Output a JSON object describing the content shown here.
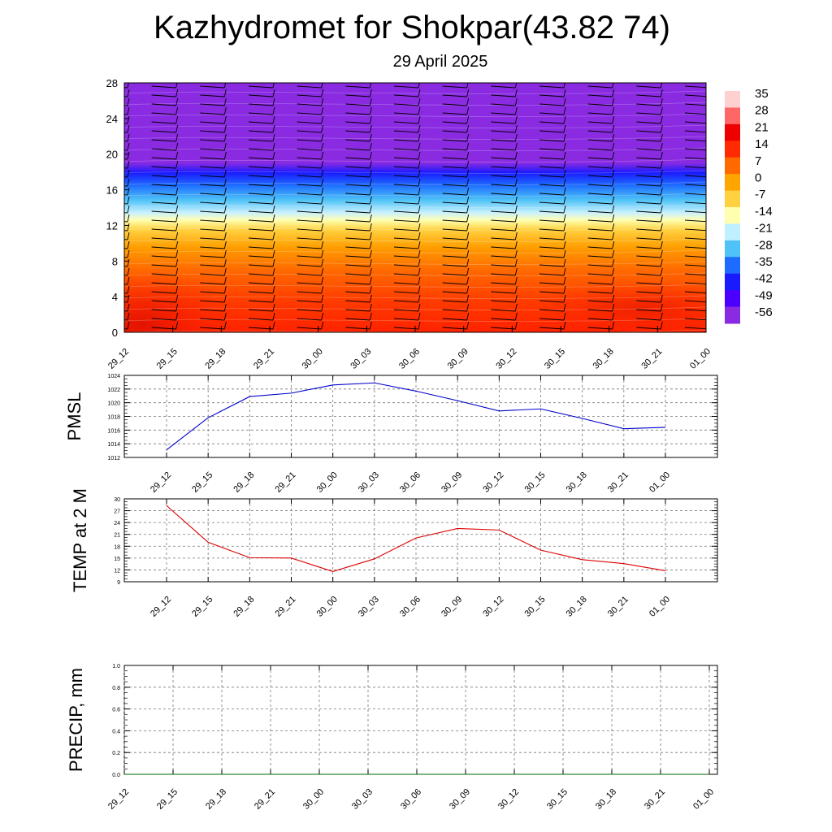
{
  "title": "Kazhydromet for Shokpar(43.82 74)",
  "subtitle": "29 April 2025",
  "x_times": [
    "29_12",
    "29_15",
    "29_18",
    "29_21",
    "30_00",
    "30_03",
    "30_06",
    "30_09",
    "30_12",
    "30_15",
    "30_18",
    "30_21",
    "01_00"
  ],
  "chart_data": [
    {
      "type": "heatmap",
      "name": "cross-section",
      "title": "",
      "xlabel": "",
      "ylabel": "",
      "categories": [
        "29_12",
        "29_15",
        "29_18",
        "29_21",
        "30_00",
        "30_03",
        "30_06",
        "30_09",
        "30_12",
        "30_15",
        "30_18",
        "30_21",
        "01_00"
      ],
      "ylim": [
        0,
        28
      ],
      "y_ticks": [
        0,
        4,
        8,
        12,
        16,
        20,
        24,
        28
      ],
      "colorbar_labels": [
        "35",
        "28",
        "21",
        "14",
        "7",
        "0",
        "-7",
        "-14",
        "-21",
        "-28",
        "-35",
        "-42",
        "-49",
        "-56"
      ],
      "colorbar_range": [
        -63,
        42
      ],
      "colors": {
        "warm": "#ff2a00",
        "cold": "#8a2be2",
        "freeze": "#ffffb0"
      }
    },
    {
      "type": "line",
      "title": "",
      "ylabel": "PMSL",
      "categories": [
        "29_12",
        "29_15",
        "29_18",
        "29_21",
        "30_00",
        "30_03",
        "30_06",
        "30_09",
        "30_12",
        "30_15",
        "30_18",
        "30_21",
        "01_00"
      ],
      "series": [
        {
          "values": [
            1013.1,
            1017.8,
            1020.9,
            1021.4,
            1022.6,
            1022.9,
            1021.7,
            1020.3,
            1018.8,
            1019.1,
            1017.7,
            1016.2,
            1016.4
          ],
          "color": "#0000cc"
        }
      ],
      "ylim": [
        1012,
        1024
      ],
      "y_ticks": [
        "1012",
        "1014",
        "1016",
        "1018",
        "1020",
        "1022",
        "1024"
      ]
    },
    {
      "type": "line",
      "title": "",
      "ylabel": "TEMP at 2 M",
      "categories": [
        "29_12",
        "29_15",
        "29_18",
        "29_21",
        "30_00",
        "30_03",
        "30_06",
        "30_09",
        "30_12",
        "30_15",
        "30_18",
        "30_21",
        "01_00"
      ],
      "series": [
        {
          "values": [
            28.3,
            19.0,
            15.1,
            15.0,
            11.6,
            14.8,
            20.1,
            22.5,
            22.1,
            17.0,
            14.6,
            13.6,
            11.8
          ],
          "color": "#dd0000"
        }
      ],
      "ylim": [
        9,
        30
      ],
      "y_ticks": [
        "9",
        "12",
        "15",
        "18",
        "21",
        "24",
        "27",
        "30"
      ]
    },
    {
      "type": "line",
      "title": "",
      "ylabel": "PRECIP, mm",
      "categories": [
        "29_12",
        "29_15",
        "29_18",
        "29_21",
        "30_00",
        "30_03",
        "30_06",
        "30_09",
        "30_12",
        "30_15",
        "30_18",
        "30_21",
        "01_00"
      ],
      "series": [
        {
          "values": [
            0,
            0,
            0,
            0,
            0,
            0,
            0,
            0,
            0,
            0,
            0,
            0,
            0
          ],
          "color": "#006400"
        }
      ],
      "ylim": [
        0,
        1
      ],
      "y_ticks": [
        "0.0",
        "0.2",
        "0.4",
        "0.6",
        "0.8",
        "1.0"
      ]
    }
  ]
}
